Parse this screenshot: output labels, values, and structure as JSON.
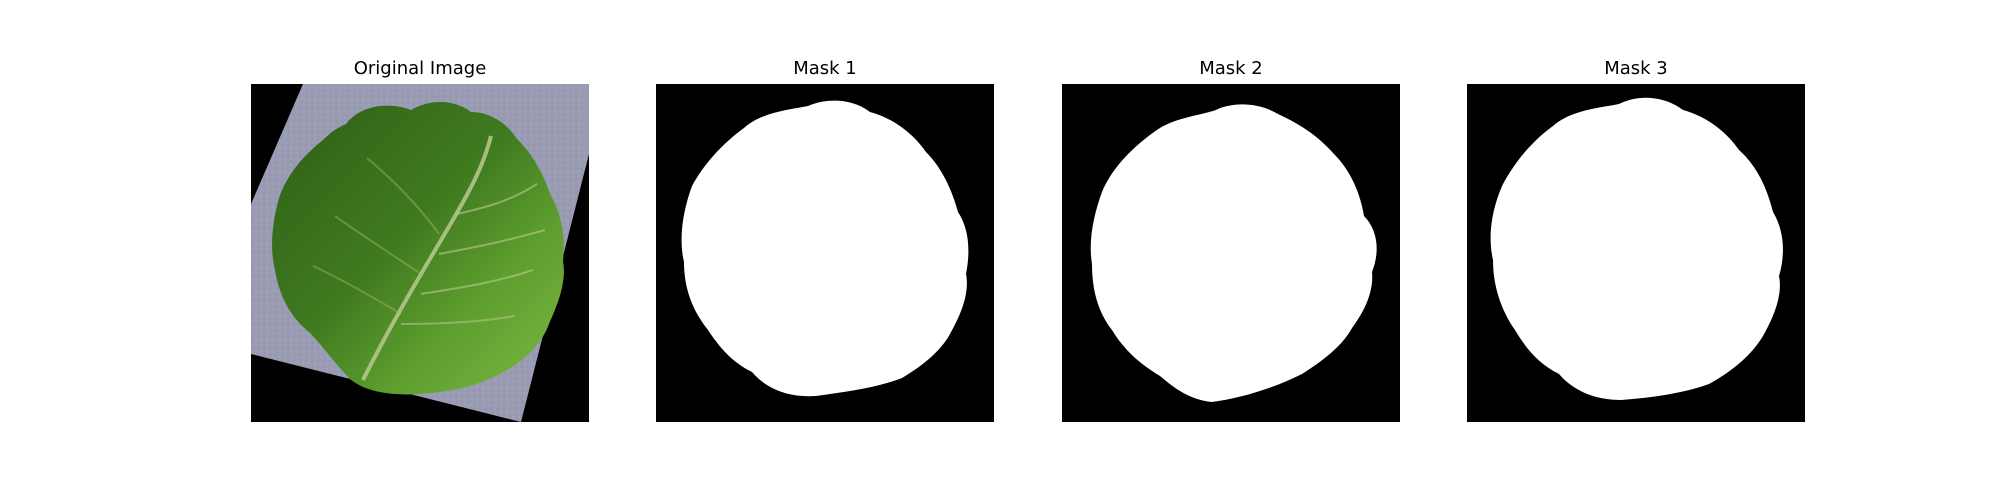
{
  "figure": {
    "background": "#ffffff",
    "panels": [
      {
        "title": "Original Image",
        "kind": "photo-leaf"
      },
      {
        "title": "Mask 1",
        "kind": "binary-mask"
      },
      {
        "title": "Mask 2",
        "kind": "binary-mask"
      },
      {
        "title": "Mask 3",
        "kind": "binary-mask"
      }
    ]
  },
  "colors": {
    "mask_background": "#000000",
    "mask_foreground": "#ffffff",
    "photo_background": "#000000",
    "surface_gray": "#9a9cb4",
    "leaf_dark_green": "#2f5f16",
    "leaf_light_green": "#6fae35",
    "vein": "#b9c98e"
  }
}
